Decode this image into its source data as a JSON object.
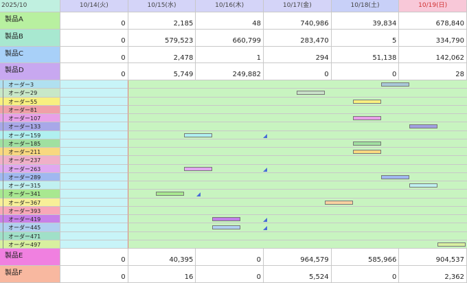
{
  "header": {
    "year": "2025/10",
    "dates": [
      "10/14(火)",
      "10/15(水)",
      "10/16(木)",
      "10/17(金)",
      "10/18(土)",
      "10/19(日)"
    ]
  },
  "products_top": [
    {
      "name": "製品A",
      "values": [
        "0",
        "2,185",
        "48",
        "740,986",
        "39,834",
        "678,840"
      ]
    },
    {
      "name": "製品B",
      "values": [
        "0",
        "579,523",
        "660,799",
        "283,470",
        "5",
        "334,790"
      ]
    },
    {
      "name": "製品C",
      "values": [
        "0",
        "2,478",
        "1",
        "294",
        "51,138",
        "142,062"
      ]
    },
    {
      "name": "製品D",
      "values": [
        "0",
        "5,749",
        "249,882",
        "0",
        "0",
        "28"
      ]
    }
  ],
  "orders": [
    "オーダー3",
    "オーダー29",
    "オーダー55",
    "オーダー81",
    "オーダー107",
    "オーダー133",
    "オーダー159",
    "オーダー185",
    "オーダー211",
    "オーダー237",
    "オーダー263",
    "オーダー289",
    "オーダー315",
    "オーダー341",
    "オーダー367",
    "オーダー393",
    "オーダー419",
    "オーダー445",
    "オーダー471",
    "オーダー497"
  ],
  "products_bottom": [
    {
      "name": "製品E",
      "values": [
        "0",
        "40,395",
        "0",
        "964,579",
        "585,966",
        "904,537"
      ]
    },
    {
      "name": "製品F",
      "values": [
        "0",
        "16",
        "0",
        "5,524",
        "0",
        "2,362"
      ]
    }
  ]
}
